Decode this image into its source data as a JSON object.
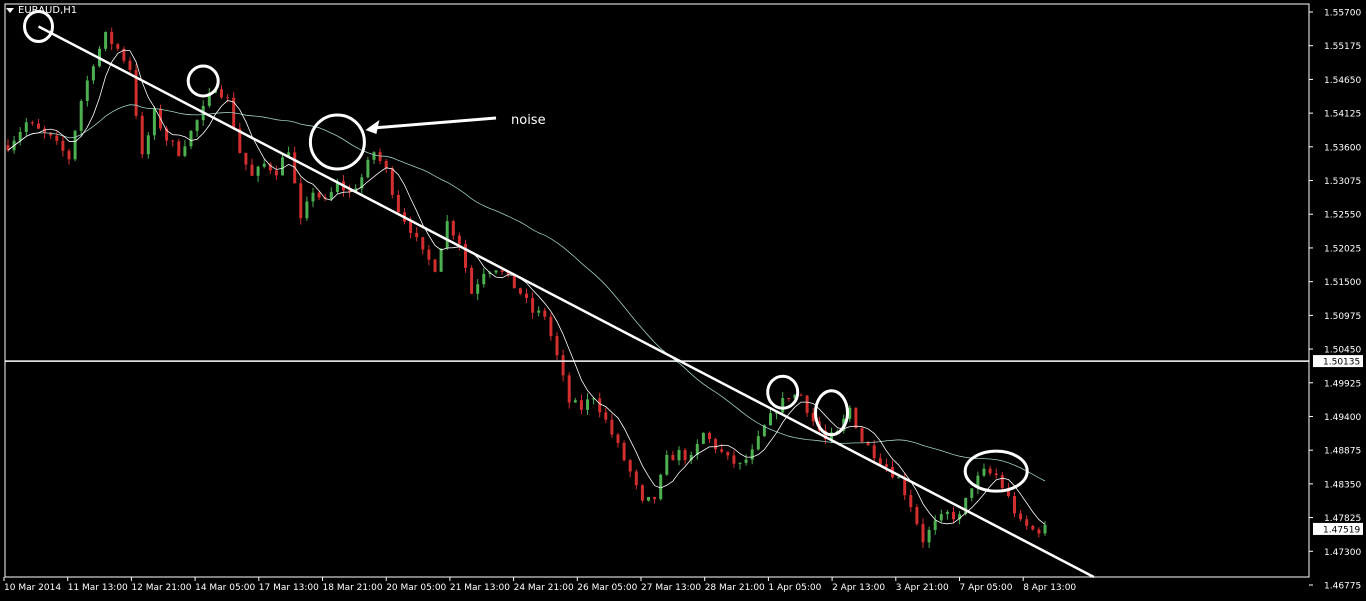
{
  "header": {
    "symbol": "EURAUD,H1"
  },
  "annotation": {
    "noise_label": "noise"
  },
  "colors": {
    "background": "#000000",
    "frame": "#ffffff",
    "bull_candle": "#4caf50",
    "bear_candle": "#d32f2f",
    "fast_ma": "#ffffff",
    "slow_ma": "#9ecec6",
    "trendline": "#ffffff",
    "hline": "#ffffff",
    "price_box_bg": "#ffffff",
    "price_box_text": "#000000"
  },
  "chart_data": {
    "type": "candlestick",
    "symbol": "EURAUD",
    "timeframe": "H1",
    "ylim": [
      1.4677,
      1.557
    ],
    "y_ticks": [
      "1.55700",
      "1.55175",
      "1.54650",
      "1.54125",
      "1.53600",
      "1.53075",
      "1.52550",
      "1.52025",
      "1.51500",
      "1.50975",
      "1.50450",
      "1.49925",
      "1.49400",
      "1.48875",
      "1.48350",
      "1.47825",
      "1.47300",
      "1.46775"
    ],
    "x_ticks": [
      "10 Mar 2014",
      "11 Mar 13:00",
      "12 Mar 21:00",
      "14 Mar 05:00",
      "17 Mar 13:00",
      "18 Mar 21:00",
      "20 Mar 05:00",
      "21 Mar 13:00",
      "24 Mar 21:00",
      "26 Mar 05:00",
      "27 Mar 13:00",
      "28 Mar 21:00",
      "1 Apr 05:00",
      "2 Apr 13:00",
      "3 Apr 21:00",
      "7 Apr 05:00",
      "8 Apr 13:00"
    ],
    "horizontal_line": {
      "price": 1.50135,
      "label": "1.50135"
    },
    "current_price": {
      "price": 1.47519,
      "label": "1.47519"
    },
    "price_path": [
      [
        0,
        1.535
      ],
      [
        3,
        1.5385
      ],
      [
        7,
        1.536
      ],
      [
        10,
        1.533
      ],
      [
        12,
        1.542
      ],
      [
        14,
        1.548
      ],
      [
        16,
        1.552
      ],
      [
        18,
        1.55
      ],
      [
        20,
        1.547
      ],
      [
        22,
        1.533
      ],
      [
        24,
        1.54
      ],
      [
        26,
        1.536
      ],
      [
        28,
        1.534
      ],
      [
        30,
        1.537
      ],
      [
        32,
        1.5405
      ],
      [
        34,
        1.5445
      ],
      [
        36,
        1.542
      ],
      [
        38,
        1.534
      ],
      [
        40,
        1.53
      ],
      [
        42,
        1.532
      ],
      [
        44,
        1.531
      ],
      [
        46,
        1.5345
      ],
      [
        48,
        1.523
      ],
      [
        50,
        1.528
      ],
      [
        52,
        1.526
      ],
      [
        54,
        1.529
      ],
      [
        56,
        1.5275
      ],
      [
        58,
        1.53
      ],
      [
        60,
        1.534
      ],
      [
        62,
        1.531
      ],
      [
        64,
        1.525
      ],
      [
        66,
        1.522
      ],
      [
        68,
        1.518
      ],
      [
        70,
        1.516
      ],
      [
        72,
        1.523
      ],
      [
        74,
        1.52
      ],
      [
        76,
        1.512
      ],
      [
        78,
        1.5155
      ],
      [
        80,
        1.516
      ],
      [
        82,
        1.514
      ],
      [
        84,
        1.512
      ],
      [
        86,
        1.509
      ],
      [
        88,
        1.5085
      ],
      [
        90,
        1.502
      ],
      [
        92,
        1.495
      ],
      [
        94,
        1.494
      ],
      [
        96,
        1.496
      ],
      [
        98,
        1.492
      ],
      [
        100,
        1.488
      ],
      [
        102,
        1.484
      ],
      [
        104,
        1.479
      ],
      [
        106,
        1.48
      ],
      [
        108,
        1.486
      ],
      [
        110,
        1.487
      ],
      [
        112,
        1.486
      ],
      [
        114,
        1.49
      ],
      [
        116,
        1.488
      ],
      [
        118,
        1.486
      ],
      [
        120,
        1.485
      ],
      [
        122,
        1.487
      ],
      [
        124,
        1.491
      ],
      [
        126,
        1.494
      ],
      [
        128,
        1.496
      ],
      [
        130,
        1.496
      ],
      [
        132,
        1.492
      ],
      [
        134,
        1.489
      ],
      [
        136,
        1.49
      ],
      [
        138,
        1.494
      ],
      [
        140,
        1.489
      ],
      [
        142,
        1.487
      ],
      [
        144,
        1.485
      ],
      [
        146,
        1.483
      ],
      [
        148,
        1.479
      ],
      [
        150,
        1.4735
      ],
      [
        152,
        1.476
      ],
      [
        154,
        1.4775
      ],
      [
        156,
        1.477
      ],
      [
        158,
        1.482
      ],
      [
        160,
        1.484
      ],
      [
        162,
        1.4835
      ],
      [
        164,
        1.48
      ],
      [
        166,
        1.476
      ],
      [
        168,
        1.475
      ],
      [
        170,
        1.4752
      ]
    ],
    "trendline": [
      [
        5,
        1.5535
      ],
      [
        178,
        1.4677
      ]
    ],
    "circles": [
      {
        "name": "swing-high-1",
        "i": 5,
        "price": 1.5535,
        "rx_px": 14,
        "ry_px": 15
      },
      {
        "name": "swing-high-2",
        "i": 32,
        "price": 1.545,
        "rx_px": 15,
        "ry_px": 15
      },
      {
        "name": "noise-circle",
        "i": 54,
        "price": 1.5355,
        "rx_px": 27,
        "ry_px": 27
      },
      {
        "name": "retest-1",
        "i": 127,
        "price": 1.4965,
        "rx_px": 15,
        "ry_px": 16
      },
      {
        "name": "retest-2",
        "i": 135,
        "price": 1.4933,
        "rx_px": 16,
        "ry_px": 22
      },
      {
        "name": "retest-3",
        "i": 162,
        "price": 1.4842,
        "rx_px": 31,
        "ry_px": 20
      }
    ]
  }
}
